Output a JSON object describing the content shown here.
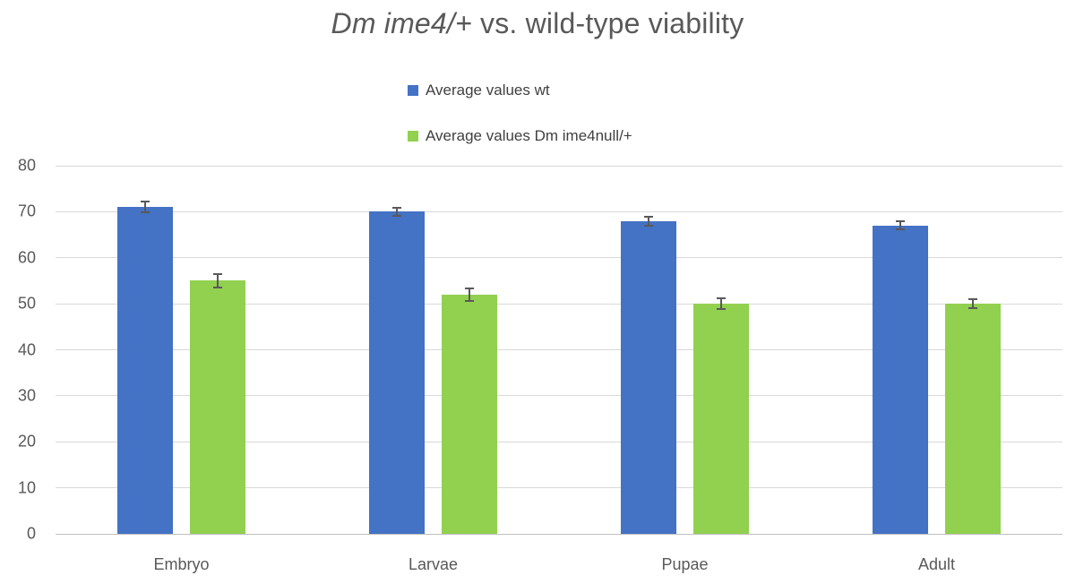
{
  "title": {
    "italic": "Dm ime4/+",
    "rest": " vs. wild-type viability",
    "color": "#595959"
  },
  "chart_data": {
    "type": "bar",
    "title": "Dm ime4/+ vs. wild-type viability",
    "categories": [
      "Embryo",
      "Larvae",
      "Pupae",
      "Adult"
    ],
    "series": [
      {
        "name": "Average values wt",
        "color": "#4472C4",
        "values": [
          71,
          70,
          68,
          67
        ],
        "error_bars": [
          1.2,
          0.9,
          1.0,
          0.9
        ]
      },
      {
        "name": "Average values Dm ime4null/+",
        "color": "#92D050",
        "values": [
          55,
          52,
          50,
          50
        ],
        "error_bars": [
          1.4,
          1.3,
          1.2,
          1.0
        ]
      }
    ],
    "xlabel": "",
    "ylabel": "",
    "ylim": [
      0,
      80
    ],
    "ytick_step": 10,
    "ytick_labels": [
      "0",
      "10",
      "20",
      "30",
      "40",
      "50",
      "60",
      "70",
      "80"
    ],
    "grid": true,
    "legend_position": "top-center",
    "error_bar_color": "#595959",
    "grid_color": "#D9D9D9",
    "axis_color": "#C0C0C0",
    "tick_label_color": "#595959",
    "title_color": "#595959"
  }
}
